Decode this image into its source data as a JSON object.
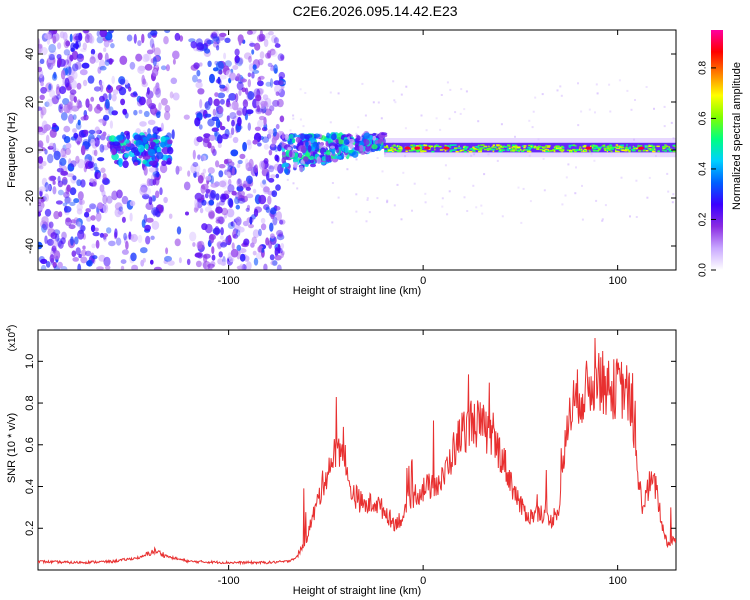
{
  "title": "C2E6.2026.095.14.42.E23",
  "chart_data": [
    {
      "type": "heatmap",
      "xlabel": "Height of straight line (km)",
      "ylabel": "Frequency (Hz)",
      "xlim": [
        -198,
        130
      ],
      "ylim": [
        -50,
        50
      ],
      "x_ticks": [
        -100,
        0,
        100
      ],
      "x_tick_labels": [
        "-100",
        "0",
        "100"
      ],
      "y_ticks": [
        -40,
        -20,
        0,
        20,
        40
      ],
      "y_tick_labels": [
        "-40",
        "-20",
        "0",
        "20",
        "40"
      ],
      "colorbar": {
        "label": "Normalized spectral amplitude",
        "range": [
          0,
          0.95
        ],
        "ticks": [
          0.0,
          0.2,
          0.4,
          0.6,
          0.8
        ],
        "tick_labels": [
          "0.0",
          "0.2",
          "0.4",
          "0.6",
          "0.8"
        ],
        "colormap": [
          "#ffffff",
          "#c9a8ff",
          "#8a2be2",
          "#3b00ff",
          "#0060ff",
          "#00d0ff",
          "#00ff80",
          "#80ff00",
          "#ffff00",
          "#ff8000",
          "#ff0000",
          "#ff00a0"
        ]
      },
      "features": [
        {
          "x_start": -198,
          "x_end": -72,
          "f_center": 0,
          "f_halfwidth": 50,
          "amplitude": 0.15,
          "description_kind": "noise"
        },
        {
          "x_start": -160,
          "x_end": -130,
          "f_center": 0,
          "f_halfwidth": 6,
          "amplitude": 0.35
        },
        {
          "x_start": -72,
          "x_end": -20,
          "f_center": -2,
          "f_halfwidth": 8,
          "amplitude": 0.5
        },
        {
          "x_start": -20,
          "x_end": 130,
          "f_center": 1,
          "f_halfwidth": 2,
          "amplitude": 0.7
        }
      ]
    },
    {
      "type": "line",
      "xlabel": "Height of straight line (km)",
      "ylabel": "SNR (10 * v/v)",
      "y_multiplier": "(x10",
      "y_multiplier_exp": "4",
      "y_multiplier_close": ")",
      "xlim": [
        -198,
        130
      ],
      "ylim": [
        0,
        1.15
      ],
      "x_ticks": [
        -100,
        0,
        100
      ],
      "x_tick_labels": [
        "-100",
        "0",
        "100"
      ],
      "y_ticks": [
        0.2,
        0.4,
        0.6,
        0.8,
        1.0
      ],
      "y_tick_labels": [
        "0.2",
        "0.4",
        "0.6",
        "0.8",
        "1.0"
      ],
      "line_color": "#e83030",
      "series": [
        {
          "x": [
            -198,
            -180,
            -160,
            -145,
            -138,
            -130,
            -120,
            -100,
            -80,
            -70,
            -65,
            -60,
            -55,
            -50,
            -45,
            -42,
            -40,
            -38,
            -35,
            -30,
            -25,
            -20,
            -15,
            -10,
            -5,
            0,
            5,
            10,
            15,
            20,
            25,
            30,
            35,
            40,
            45,
            50,
            55,
            60,
            65,
            70,
            75,
            80,
            85,
            90,
            95,
            100,
            105,
            108,
            110,
            113,
            117,
            120,
            123,
            126,
            130
          ],
          "values": [
            0.04,
            0.035,
            0.04,
            0.06,
            0.09,
            0.06,
            0.04,
            0.035,
            0.035,
            0.04,
            0.06,
            0.15,
            0.3,
            0.45,
            0.55,
            0.6,
            0.45,
            0.4,
            0.35,
            0.3,
            0.32,
            0.28,
            0.22,
            0.25,
            0.35,
            0.38,
            0.4,
            0.42,
            0.55,
            0.65,
            0.7,
            0.68,
            0.62,
            0.55,
            0.42,
            0.3,
            0.25,
            0.28,
            0.22,
            0.3,
            0.75,
            0.82,
            0.85,
            0.92,
            0.84,
            0.86,
            0.84,
            0.72,
            0.45,
            0.3,
            0.42,
            0.38,
            0.2,
            0.12,
            0.15
          ]
        }
      ]
    }
  ]
}
